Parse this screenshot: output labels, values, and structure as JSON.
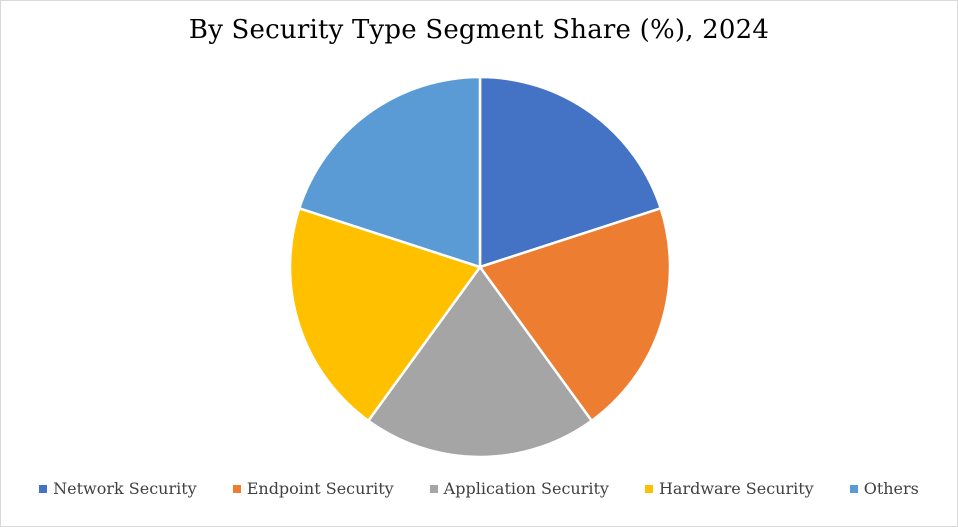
{
  "chart_data": {
    "type": "pie",
    "title": "By Security Type Segment Share (%), 2024",
    "categories": [
      "Network Security",
      "Endpoint Security",
      "Application Security",
      "Hardware Security",
      "Others"
    ],
    "values": [
      20,
      20,
      20,
      20,
      20
    ],
    "colors": [
      "#4472C4",
      "#ED7D31",
      "#A5A5A5",
      "#FFC000",
      "#5B9BD5"
    ],
    "start_angle_deg": 0,
    "direction": "clockwise",
    "legend_position": "bottom",
    "slice_border_color": "#FFFFFF"
  },
  "legend": {
    "items": [
      {
        "label": "Network Security",
        "color": "#4472C4"
      },
      {
        "label": "Endpoint Security",
        "color": "#ED7D31"
      },
      {
        "label": "Application Security",
        "color": "#A5A5A5"
      },
      {
        "label": "Hardware Security",
        "color": "#FFC000"
      },
      {
        "label": "Others",
        "color": "#5B9BD5"
      }
    ]
  }
}
